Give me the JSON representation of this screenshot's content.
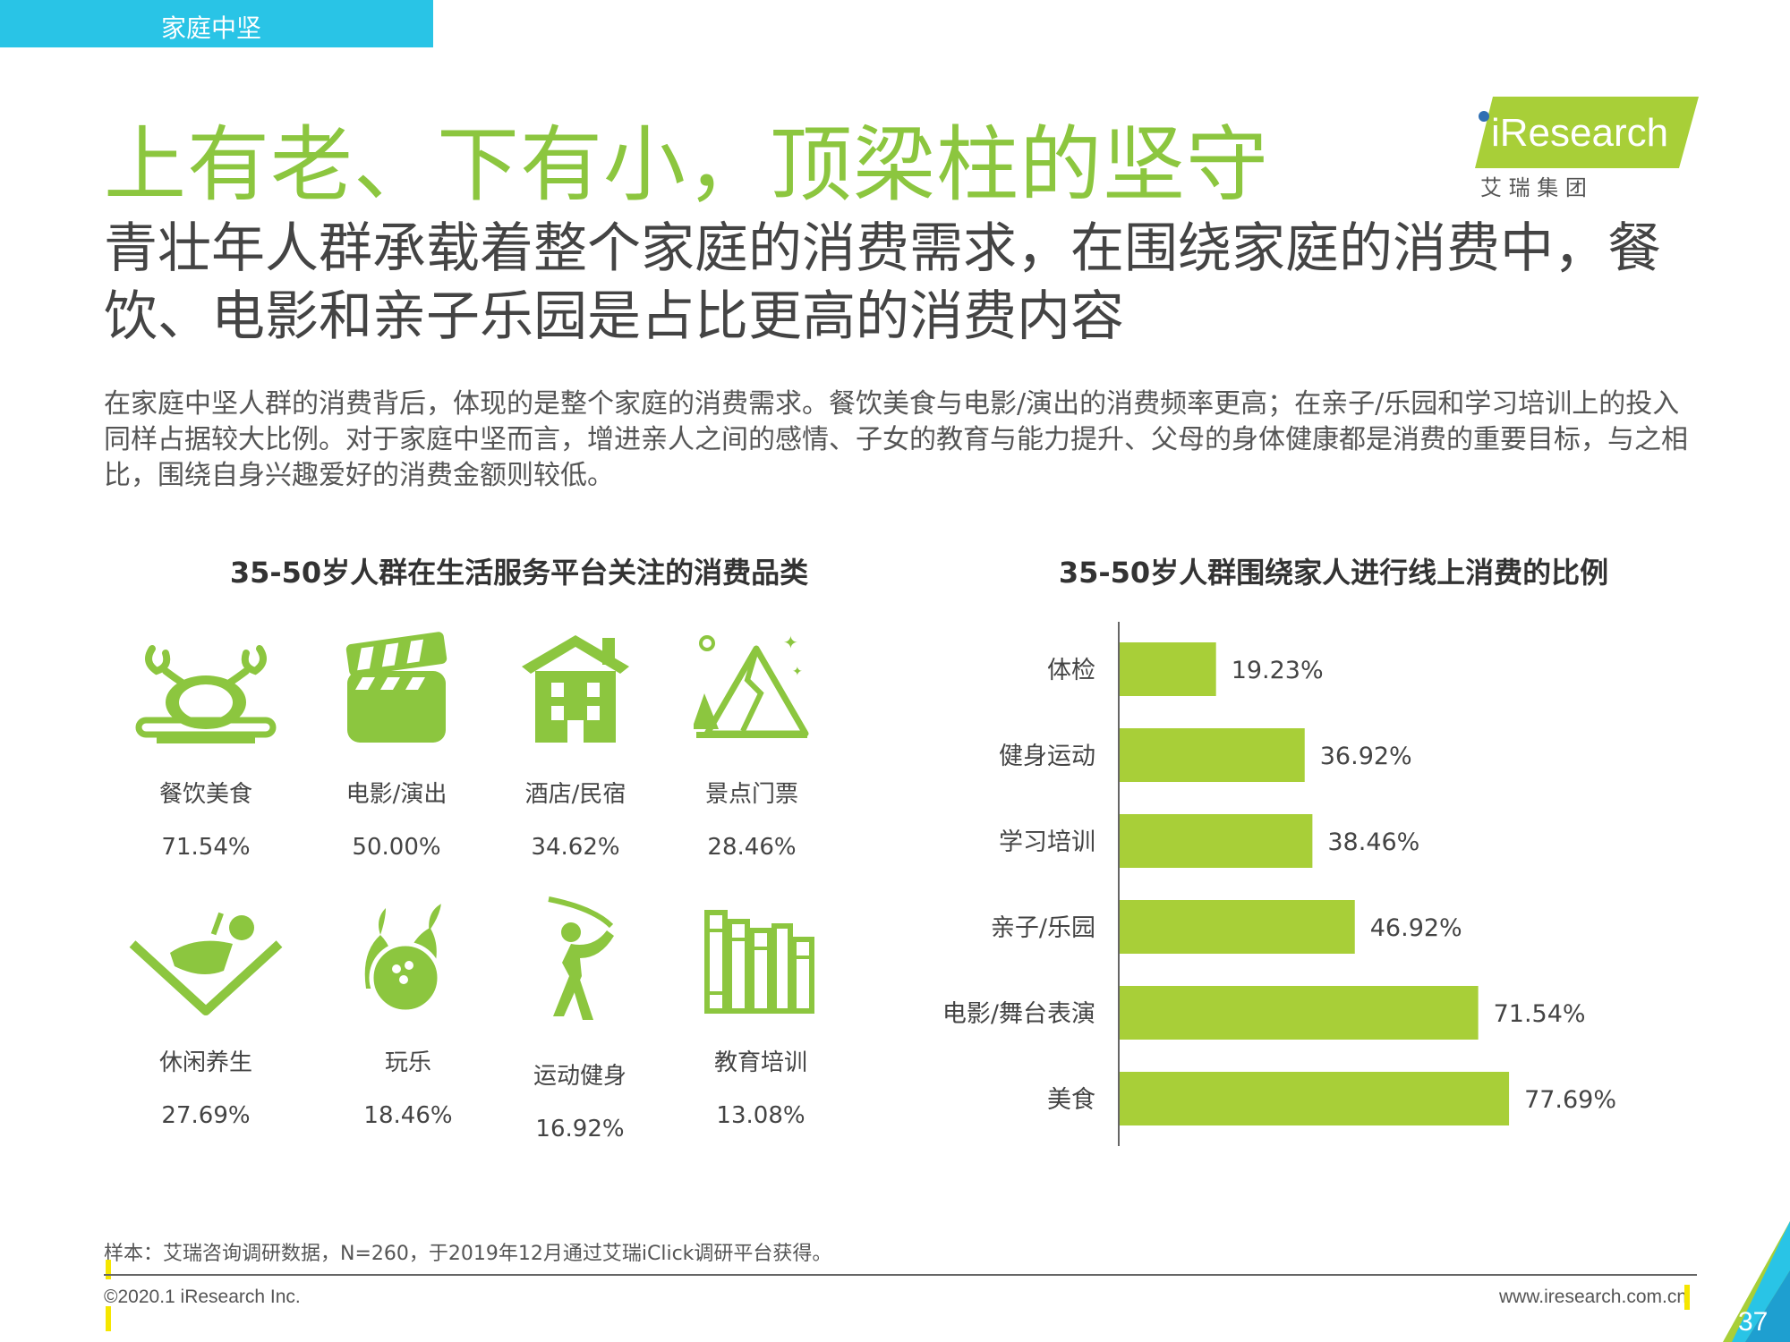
{
  "section_tag": "家庭中坚",
  "title": "上有老、下有小，顶梁柱的坚守",
  "subtitle": "青壮年人群承载着整个家庭的消费需求，在围绕家庭的消费中，餐饮、电影和亲子乐园是占比更高的消费内容",
  "body": "在家庭中坚人群的消费背后，体现的是整个家庭的消费需求。餐饮美食与电影/演出的消费频率更高；在亲子/乐园和学习培训上的投入同样占据较大比例。对于家庭中坚而言，增进亲人之间的感情、子女的教育与能力提升、父母的身体健康都是消费的重要目标，与之相比，围绕自身兴趣爱好的消费金额则较低。",
  "logo": {
    "brand": "iResearch",
    "sub": "艾 瑞 集 团"
  },
  "colors": {
    "accent": "#8cc63f",
    "bar": "#a8cf38",
    "tag": "#29c4e6"
  },
  "left_chart": {
    "title": "35-50岁人群在生活服务平台关注的消费品类",
    "categories": [
      {
        "icon": "dining-icon",
        "label": "餐饮美食",
        "value": "71.54%"
      },
      {
        "icon": "clapperboard-icon",
        "label": "电影/演出",
        "value": "50.00%"
      },
      {
        "icon": "house-icon",
        "label": "酒店/民宿",
        "value": "34.62%"
      },
      {
        "icon": "mountain-icon",
        "label": "景点门票",
        "value": "28.46%"
      },
      {
        "icon": "reclining-person-icon",
        "label": "休闲养生",
        "value": "27.69%"
      },
      {
        "icon": "bowling-icon",
        "label": "玩乐",
        "value": "18.46%"
      },
      {
        "icon": "golfer-icon",
        "label": "运动健身",
        "value": "16.92%"
      },
      {
        "icon": "books-icon",
        "label": "教育培训",
        "value": "13.08%"
      }
    ]
  },
  "chart_data": {
    "type": "bar",
    "orientation": "horizontal",
    "title": "35-50岁人群围绕家人进行线上消费的比例",
    "categories": [
      "体检",
      "健身运动",
      "学习培训",
      "亲子/乐园",
      "电影/舞台表演",
      "美食"
    ],
    "values": [
      19.23,
      36.92,
      38.46,
      46.92,
      71.54,
      77.69
    ],
    "data_labels": [
      "19.23%",
      "36.92%",
      "38.46%",
      "46.92%",
      "71.54%",
      "77.69%"
    ],
    "xlim": [
      0,
      100
    ],
    "grid": false
  },
  "footnote": "样本：艾瑞咨询调研数据，N=260，于2019年12月通过艾瑞iClick调研平台获得。",
  "copyright": "©2020.1 iResearch Inc.",
  "website": "www.iresearch.com.cn",
  "page_number": "37"
}
